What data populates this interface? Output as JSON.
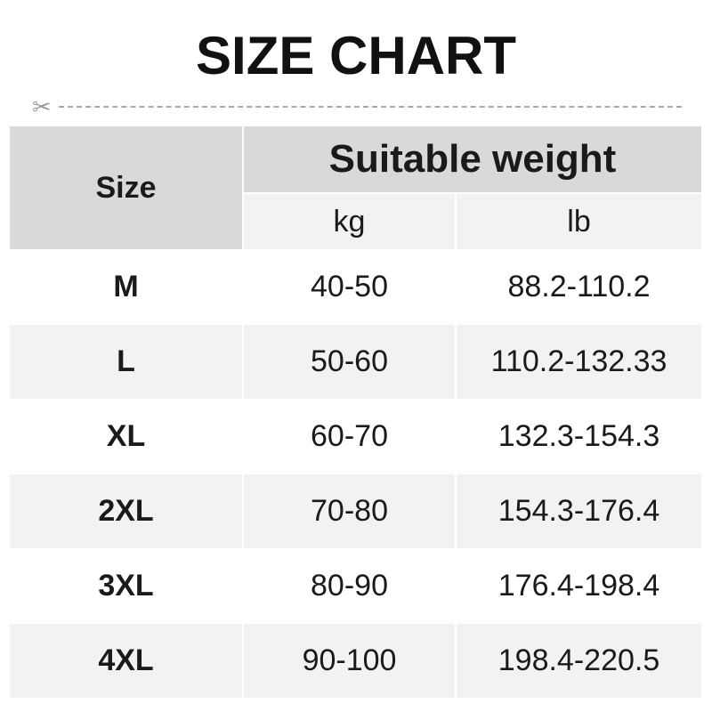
{
  "title": "SIZE CHART",
  "icons": {
    "cut_line": "scissors-icon"
  },
  "header": {
    "size": "Size",
    "weight": "Suitable weight",
    "kg": "kg",
    "lb": "lb"
  },
  "rows": [
    {
      "size": "M",
      "kg": "40-50",
      "lb": "88.2-110.2"
    },
    {
      "size": "L",
      "kg": "50-60",
      "lb": "110.2-132.33"
    },
    {
      "size": "XL",
      "kg": "60-70",
      "lb": "132.3-154.3"
    },
    {
      "size": "2XL",
      "kg": "70-80",
      "lb": "154.3-176.4"
    },
    {
      "size": "3XL",
      "kg": "80-90",
      "lb": "176.4-198.4"
    },
    {
      "size": "4XL",
      "kg": "90-100",
      "lb": "198.4-220.5"
    }
  ]
}
